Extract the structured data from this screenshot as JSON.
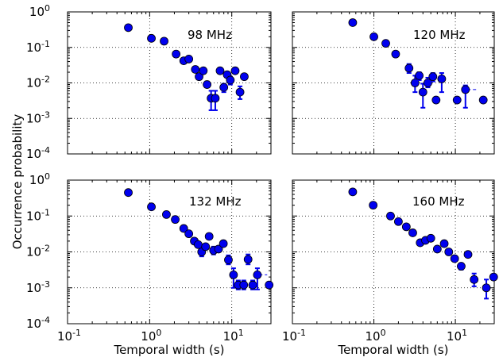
{
  "figure": {
    "ylabel": "Occurrence probability",
    "xlabel": "Temporal width (s)",
    "x_tick_labels": [
      {
        "base": "10",
        "exp": "-1"
      },
      {
        "base": "10",
        "exp": "0"
      },
      {
        "base": "10",
        "exp": "1"
      }
    ],
    "y_tick_labels": [
      {
        "base": "10",
        "exp": "0"
      },
      {
        "base": "10",
        "exp": "-1"
      },
      {
        "base": "10",
        "exp": "-2"
      },
      {
        "base": "10",
        "exp": "-3"
      },
      {
        "base": "10",
        "exp": "-4"
      }
    ],
    "colors": {
      "marker": "#0000ee",
      "marker_edge": "#000000"
    }
  },
  "chart_data": [
    {
      "type": "scatter",
      "label": "98 MHz",
      "xscale": "log",
      "yscale": "log",
      "xlim": [
        0.1,
        30
      ],
      "ylim": [
        0.0001,
        1
      ],
      "grid": true,
      "points": [
        {
          "x": 0.55,
          "y": 0.36
        },
        {
          "x": 1.05,
          "y": 0.18
        },
        {
          "x": 1.5,
          "y": 0.15
        },
        {
          "x": 2.1,
          "y": 0.065
        },
        {
          "x": 2.6,
          "y": 0.042
        },
        {
          "x": 3.0,
          "y": 0.047
        },
        {
          "x": 3.6,
          "y": 0.024
        },
        {
          "x": 4.0,
          "y": 0.015
        },
        {
          "x": 4.5,
          "y": 0.022
        },
        {
          "x": 5.0,
          "y": 0.009,
          "ylo": 0.0075,
          "yhi": 0.011
        },
        {
          "x": 5.6,
          "y": 0.0037,
          "ylo": 0.0017,
          "yhi": 0.006
        },
        {
          "x": 6.3,
          "y": 0.0037,
          "ylo": 0.0017,
          "yhi": 0.006
        },
        {
          "x": 7.2,
          "y": 0.022
        },
        {
          "x": 8.0,
          "y": 0.0075,
          "ylo": 0.0055,
          "yhi": 0.0095
        },
        {
          "x": 8.8,
          "y": 0.017
        },
        {
          "x": 9.6,
          "y": 0.012,
          "ylo": 0.009,
          "yhi": 0.015
        },
        {
          "x": 11.0,
          "y": 0.022
        },
        {
          "x": 12.6,
          "y": 0.0055,
          "ylo": 0.0035,
          "yhi": 0.008,
          "xlo": 11.5,
          "xhi": 14.0
        },
        {
          "x": 14.2,
          "y": 0.015
        }
      ]
    },
    {
      "type": "scatter",
      "label": "120 MHz",
      "xscale": "log",
      "yscale": "log",
      "xlim": [
        0.1,
        30
      ],
      "ylim": [
        0.0001,
        1
      ],
      "grid": true,
      "points": [
        {
          "x": 0.55,
          "y": 0.5
        },
        {
          "x": 1.0,
          "y": 0.2
        },
        {
          "x": 1.4,
          "y": 0.13
        },
        {
          "x": 1.85,
          "y": 0.065
        },
        {
          "x": 2.7,
          "y": 0.026,
          "ylo": 0.019,
          "yhi": 0.034
        },
        {
          "x": 3.2,
          "y": 0.01,
          "ylo": 0.0055,
          "yhi": 0.016
        },
        {
          "x": 3.6,
          "y": 0.016,
          "ylo": 0.012,
          "yhi": 0.02
        },
        {
          "x": 4.0,
          "y": 0.0055,
          "ylo": 0.002,
          "yhi": 0.0095
        },
        {
          "x": 4.6,
          "y": 0.01,
          "ylo": 0.0075,
          "yhi": 0.014
        },
        {
          "x": 5.3,
          "y": 0.015,
          "ylo": 0.011,
          "yhi": 0.019
        },
        {
          "x": 5.8,
          "y": 0.0033
        },
        {
          "x": 6.8,
          "y": 0.013,
          "ylo": 0.0055,
          "yhi": 0.019
        },
        {
          "x": 10.5,
          "y": 0.0033
        },
        {
          "x": 13.3,
          "y": 0.0065,
          "ylo": 0.002,
          "yhi": 0.0085,
          "xlo": 12.0,
          "xhi": 19.0
        },
        {
          "x": 22.0,
          "y": 0.0033
        }
      ]
    },
    {
      "type": "scatter",
      "label": "132 MHz",
      "xscale": "log",
      "yscale": "log",
      "xlim": [
        0.1,
        30
      ],
      "ylim": [
        0.0001,
        1
      ],
      "grid": true,
      "points": [
        {
          "x": 0.55,
          "y": 0.45
        },
        {
          "x": 1.05,
          "y": 0.18
        },
        {
          "x": 1.6,
          "y": 0.11
        },
        {
          "x": 2.05,
          "y": 0.08
        },
        {
          "x": 2.6,
          "y": 0.045
        },
        {
          "x": 3.0,
          "y": 0.032
        },
        {
          "x": 3.5,
          "y": 0.02
        },
        {
          "x": 3.9,
          "y": 0.016
        },
        {
          "x": 4.3,
          "y": 0.01,
          "ylo": 0.0075,
          "yhi": 0.013
        },
        {
          "x": 4.8,
          "y": 0.014
        },
        {
          "x": 5.3,
          "y": 0.027
        },
        {
          "x": 6.0,
          "y": 0.011,
          "ylo": 0.0085,
          "yhi": 0.014
        },
        {
          "x": 6.9,
          "y": 0.012
        },
        {
          "x": 7.9,
          "y": 0.017
        },
        {
          "x": 9.1,
          "y": 0.006,
          "ylo": 0.0045,
          "yhi": 0.008
        },
        {
          "x": 10.5,
          "y": 0.0023,
          "ylo": 0.001,
          "yhi": 0.0035,
          "xlo": 9.5,
          "xhi": 11.5
        },
        {
          "x": 12.0,
          "y": 0.0012,
          "ylo": 0.0009,
          "yhi": 0.0016
        },
        {
          "x": 14.0,
          "y": 0.0012,
          "ylo": 0.0009,
          "yhi": 0.0016
        },
        {
          "x": 15.8,
          "y": 0.0062,
          "ylo": 0.0045,
          "yhi": 0.0085
        },
        {
          "x": 18.0,
          "y": 0.0012,
          "ylo": 0.0009,
          "yhi": 0.0016
        },
        {
          "x": 20.5,
          "y": 0.0023,
          "ylo": 0.0009,
          "yhi": 0.0035,
          "xlo": 18.5,
          "xhi": 27.0
        },
        {
          "x": 28.5,
          "y": 0.0012
        }
      ]
    },
    {
      "type": "scatter",
      "label": "160 MHz",
      "xscale": "log",
      "yscale": "log",
      "xlim": [
        0.1,
        30
      ],
      "ylim": [
        0.0001,
        1
      ],
      "grid": true,
      "points": [
        {
          "x": 0.55,
          "y": 0.47
        },
        {
          "x": 0.98,
          "y": 0.2
        },
        {
          "x": 1.6,
          "y": 0.1
        },
        {
          "x": 2.0,
          "y": 0.07
        },
        {
          "x": 2.5,
          "y": 0.05
        },
        {
          "x": 3.0,
          "y": 0.034
        },
        {
          "x": 3.7,
          "y": 0.018
        },
        {
          "x": 4.3,
          "y": 0.021
        },
        {
          "x": 5.0,
          "y": 0.024
        },
        {
          "x": 6.0,
          "y": 0.012
        },
        {
          "x": 7.3,
          "y": 0.017
        },
        {
          "x": 8.3,
          "y": 0.01
        },
        {
          "x": 9.8,
          "y": 0.0065
        },
        {
          "x": 11.8,
          "y": 0.004,
          "ylo": 0.0032,
          "yhi": 0.0048
        },
        {
          "x": 14.3,
          "y": 0.0085
        },
        {
          "x": 17.0,
          "y": 0.0017,
          "ylo": 0.0011,
          "yhi": 0.0025
        },
        {
          "x": 24.0,
          "y": 0.001,
          "ylo": 0.0005,
          "yhi": 0.0017
        },
        {
          "x": 29.5,
          "y": 0.002
        }
      ]
    }
  ]
}
